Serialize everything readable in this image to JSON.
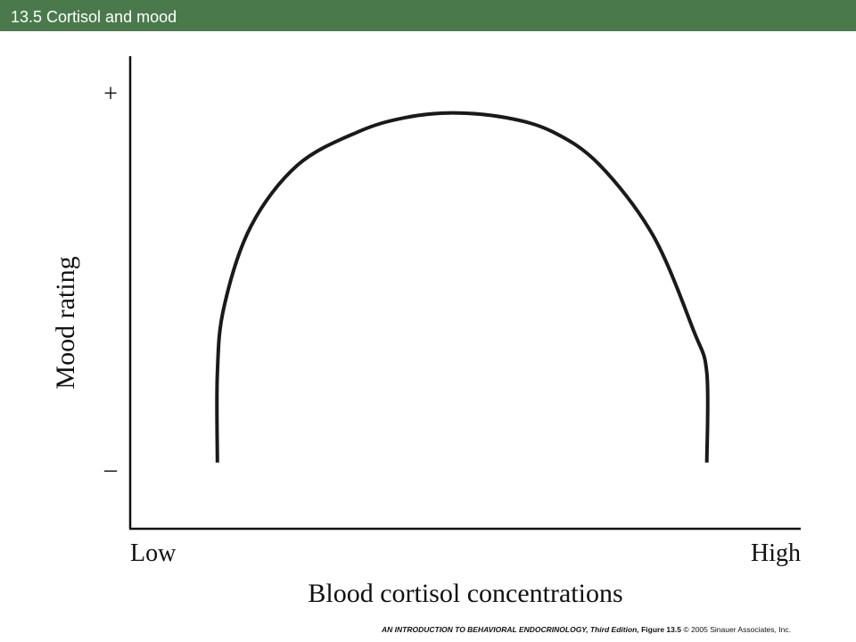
{
  "header": {
    "title": "13.5  Cortisol and mood"
  },
  "chart_data": {
    "type": "line",
    "title": "",
    "xlabel": "Blood cortisol concentrations",
    "ylabel": "Mood rating",
    "x_tick_labels": [
      "Low",
      "High"
    ],
    "y_tick_labels": [
      "+",
      "–"
    ],
    "xlim": [
      0,
      1
    ],
    "ylim": [
      0,
      1
    ],
    "grid": false,
    "series": [
      {
        "color": "#1a1a1a",
        "x": [
          0.13,
          0.13,
          0.14,
          0.18,
          0.25,
          0.34,
          0.41,
          0.48,
          0.56,
          0.63,
          0.7,
          0.78,
          0.84,
          0.86,
          0.86
        ],
        "y": [
          0.14,
          0.33,
          0.47,
          0.64,
          0.77,
          0.84,
          0.87,
          0.88,
          0.87,
          0.84,
          0.77,
          0.62,
          0.42,
          0.33,
          0.14
        ]
      }
    ]
  },
  "footer": {
    "book": "AN INTRODUCTION TO BEHAVIORAL ENDOCRINOLOGY, Third Edition,",
    "figure": "Figure 13.5",
    "copyright": "© 2005 Sinauer Associates, Inc."
  }
}
